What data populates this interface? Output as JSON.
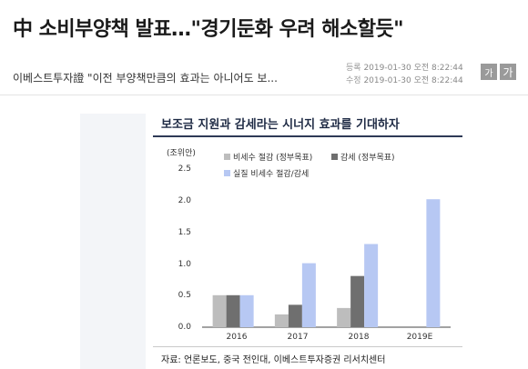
{
  "article": {
    "headline": "中 소비부양책 발표…\"경기둔화 우려 해소할듯\"",
    "summary": "이베스트투자證 \"이전 부양책만큼의 효과는 아니어도 보...",
    "registered_label": "등록",
    "registered_value": "2019-01-30 오전 8:22:44",
    "modified_label": "수정",
    "modified_value": "2019-01-30 오전 8:22:44",
    "font_small": "가",
    "font_large": "가"
  },
  "chart_data": {
    "type": "bar",
    "title": "보조금 지원과 감세라는 시너지 효과를 기대하자",
    "unit_label": "(조위안)",
    "categories": [
      "2016",
      "2017",
      "2018",
      "2019E"
    ],
    "yticks": [
      "0.0",
      "0.5",
      "1.0",
      "1.5",
      "2.0",
      "2.5"
    ],
    "ylim": [
      0,
      2.5
    ],
    "series": [
      {
        "name": "비세수 절감 (정부목표)",
        "color": "#bdbdbd",
        "values": [
          0.5,
          0.2,
          0.3,
          0
        ]
      },
      {
        "name": "감세 (정부목표)",
        "color": "#6f6f6f",
        "values": [
          0.5,
          0.35,
          0.8,
          0
        ]
      },
      {
        "name": "실질 비세수 절감/감세",
        "color": "#b7c8f3",
        "values": [
          0.5,
          1.0,
          1.3,
          2.0
        ]
      }
    ],
    "legend_position": "top",
    "source": "자료: 언론보도, 중국 전인대, 이베스트투자증권 리서치센터"
  }
}
